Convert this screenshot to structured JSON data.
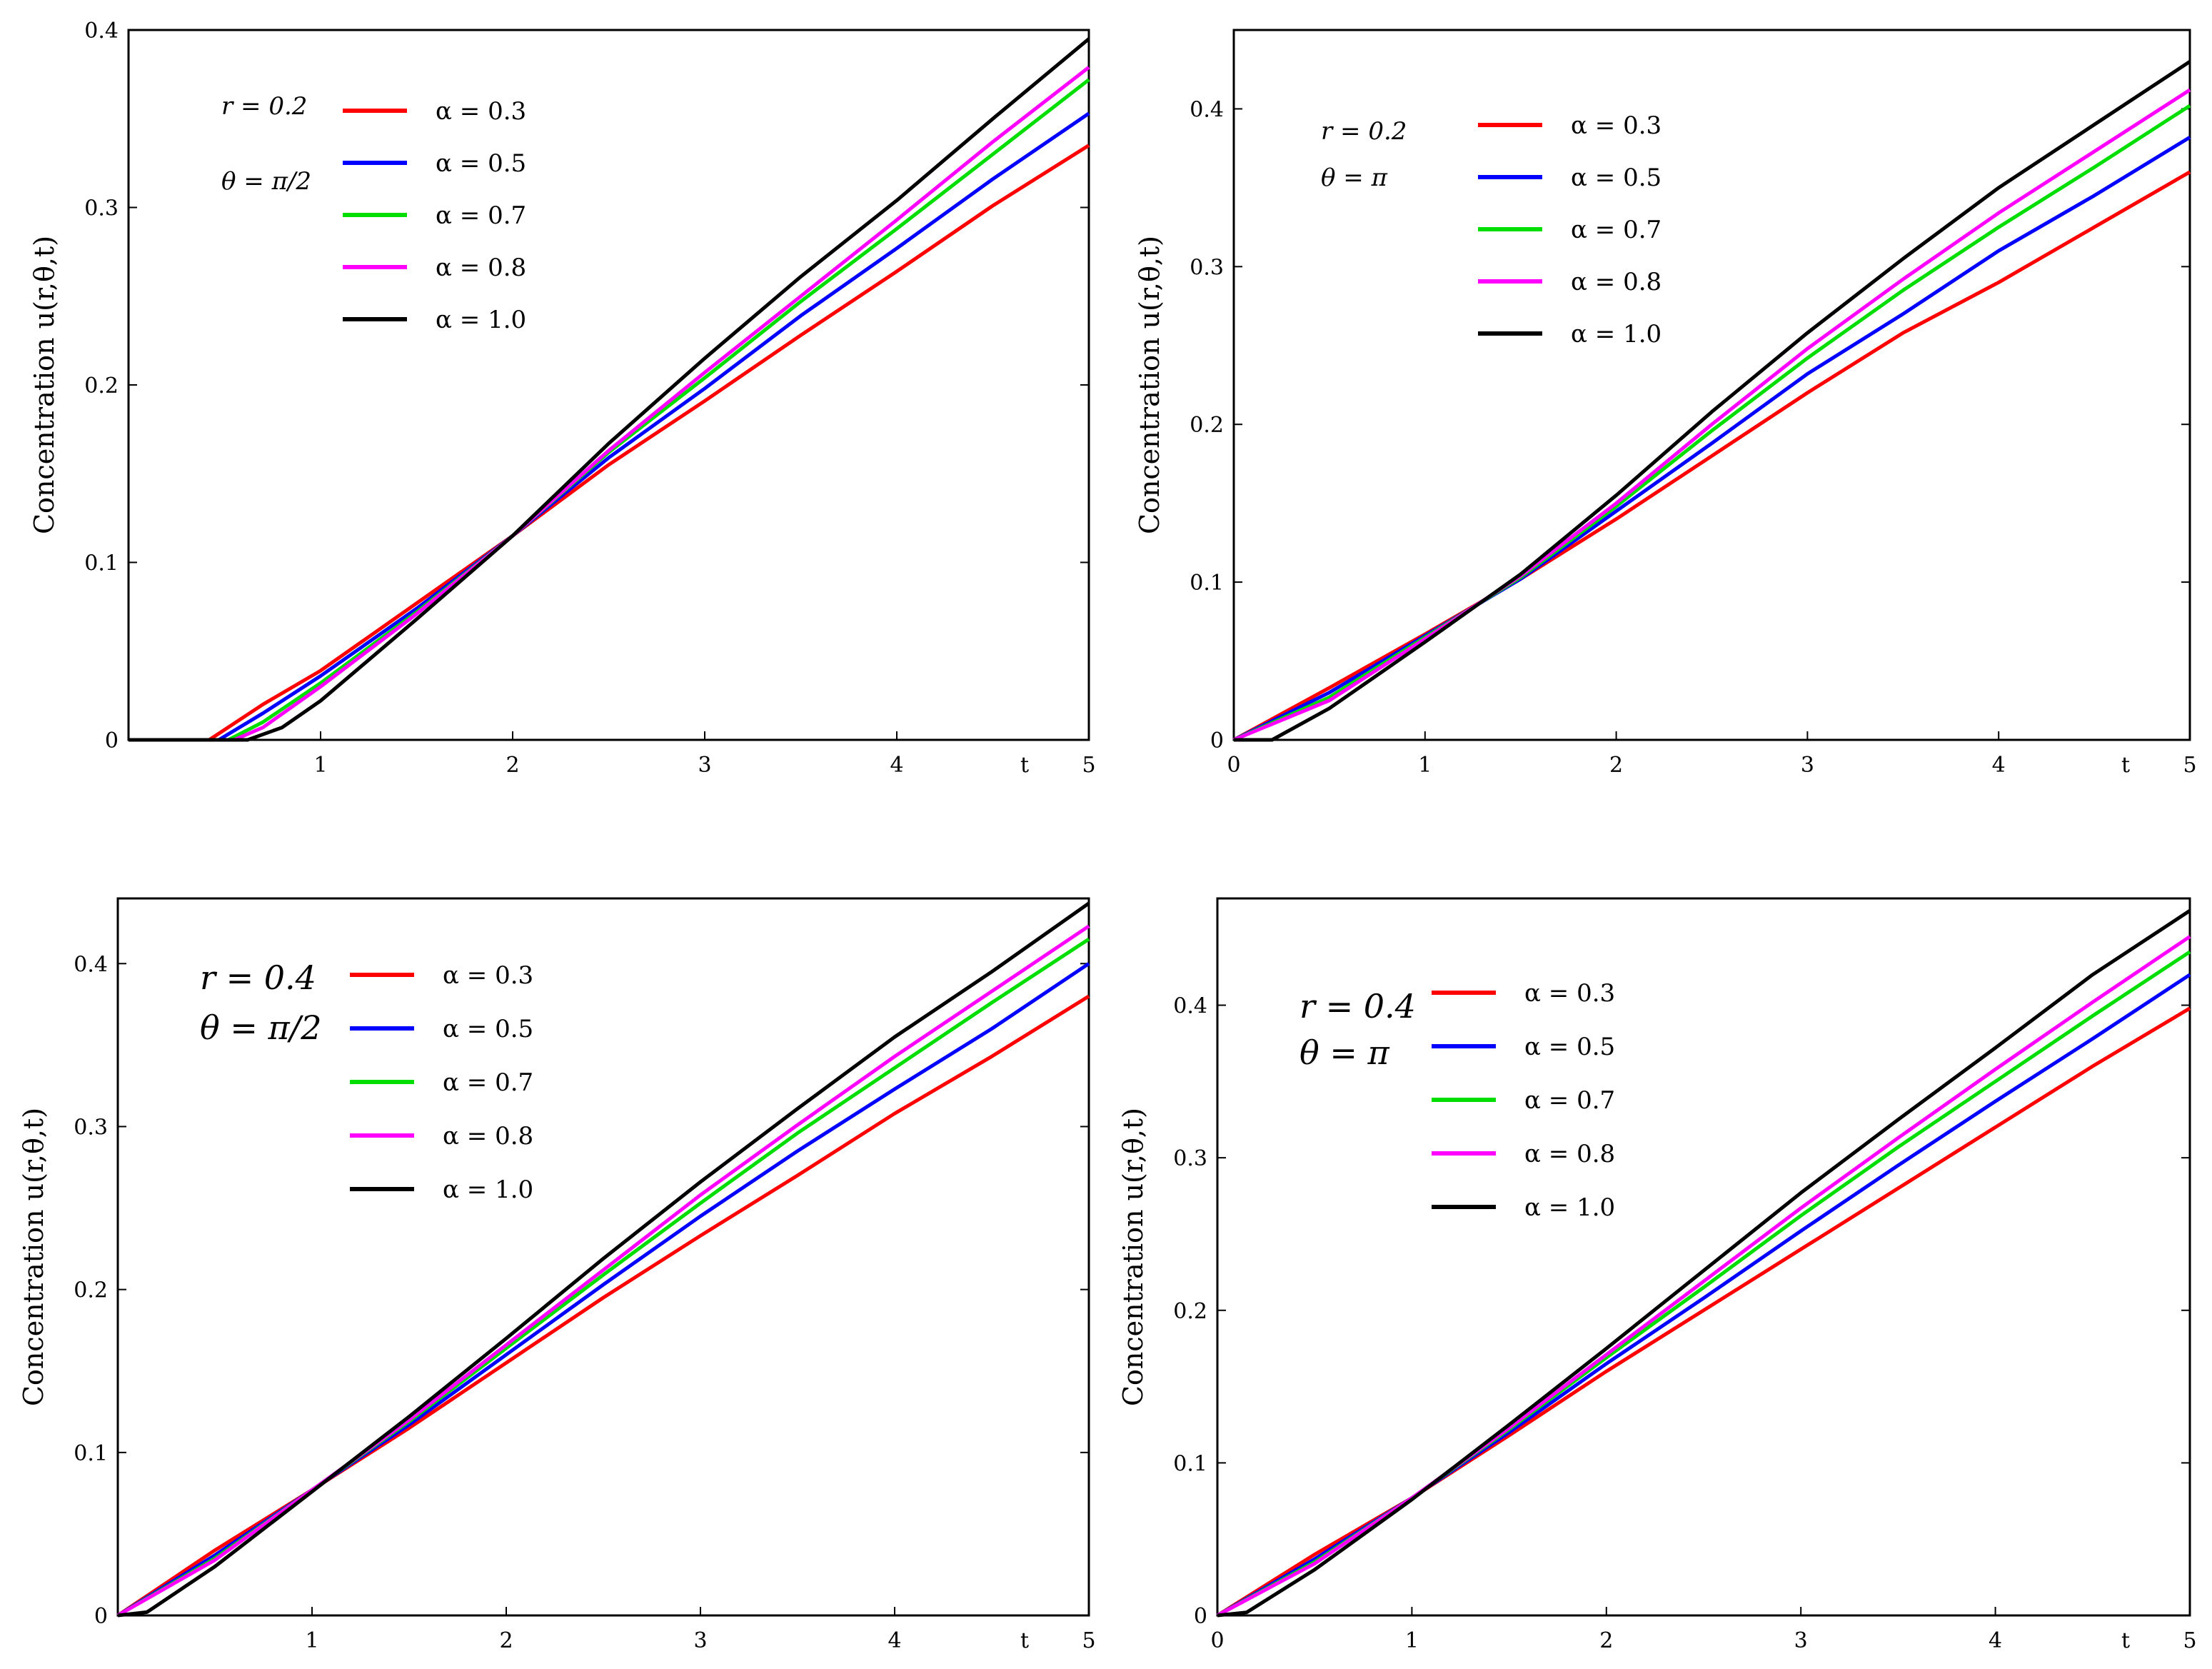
{
  "chart_data": [
    {
      "type": "line",
      "ylabel": "Concentration u(r,θ,t)",
      "xlabel": "t",
      "xlim": [
        0,
        5
      ],
      "ylim": [
        0,
        0.4
      ],
      "xticks": [
        "1",
        "2",
        "3",
        "4",
        "5"
      ],
      "yticks": [
        "0",
        "0.1",
        "0.2",
        "0.3",
        "0.4"
      ],
      "params": [
        "r = 0.2",
        "θ = π/2"
      ],
      "series": [
        {
          "name": "α = 0.3",
          "color": "#ff0000",
          "x": [
            0,
            0.42,
            0.7,
            1.0,
            1.5,
            2.0,
            2.5,
            3.0,
            3.5,
            4.0,
            4.5,
            5.0
          ],
          "y": [
            0,
            0,
            0.02,
            0.039,
            0.077,
            0.115,
            0.155,
            0.191,
            0.228,
            0.264,
            0.301,
            0.335
          ]
        },
        {
          "name": "α = 0.5",
          "color": "#0000ff",
          "x": [
            0,
            0.47,
            0.7,
            1.0,
            1.5,
            2.0,
            2.5,
            3.0,
            3.5,
            4.0,
            4.5,
            5.0
          ],
          "y": [
            0,
            0,
            0.015,
            0.036,
            0.074,
            0.115,
            0.159,
            0.198,
            0.239,
            0.277,
            0.316,
            0.353
          ]
        },
        {
          "name": "α = 0.7",
          "color": "#00dd00",
          "x": [
            0,
            0.52,
            0.7,
            1.0,
            1.5,
            2.0,
            2.5,
            3.0,
            3.5,
            4.0,
            4.5,
            5.0
          ],
          "y": [
            0,
            0,
            0.01,
            0.032,
            0.072,
            0.115,
            0.162,
            0.204,
            0.247,
            0.288,
            0.33,
            0.372
          ]
        },
        {
          "name": "α = 0.8",
          "color": "#ff00ff",
          "x": [
            0,
            0.55,
            0.7,
            1.0,
            1.5,
            2.0,
            2.5,
            3.0,
            3.5,
            4.0,
            4.5,
            5.0
          ],
          "y": [
            0,
            0,
            0.007,
            0.03,
            0.071,
            0.115,
            0.163,
            0.207,
            0.25,
            0.293,
            0.337,
            0.379
          ]
        },
        {
          "name": "α = 1.0",
          "color": "#000000",
          "x": [
            0,
            0.62,
            0.8,
            1.0,
            1.5,
            2.0,
            2.5,
            3.0,
            3.5,
            4.0,
            4.5,
            5.0
          ],
          "y": [
            0,
            0,
            0.007,
            0.022,
            0.068,
            0.115,
            0.167,
            0.215,
            0.261,
            0.304,
            0.35,
            0.395
          ]
        }
      ]
    },
    {
      "type": "line",
      "ylabel": "Concentration u(r,θ,t)",
      "xlabel": "t",
      "xlim": [
        0,
        5
      ],
      "ylim": [
        0,
        0.45
      ],
      "xticks": [
        "0",
        "1",
        "2",
        "3",
        "4",
        "5"
      ],
      "yticks": [
        "0",
        "0.1",
        "0.2",
        "0.3",
        "0.4"
      ],
      "params": [
        "r = 0.2",
        "θ = π"
      ],
      "series": [
        {
          "name": "α = 0.3",
          "color": "#ff0000",
          "x": [
            0,
            0.5,
            1.0,
            1.5,
            2.0,
            2.5,
            3.0,
            3.5,
            4.0,
            4.5,
            5.0
          ],
          "y": [
            0,
            0.033,
            0.067,
            0.102,
            0.14,
            0.18,
            0.22,
            0.258,
            0.29,
            0.325,
            0.36
          ]
        },
        {
          "name": "α = 0.5",
          "color": "#0000ff",
          "x": [
            0,
            0.5,
            1.0,
            1.5,
            2.0,
            2.5,
            3.0,
            3.5,
            4.0,
            4.5,
            5.0
          ],
          "y": [
            0,
            0.03,
            0.066,
            0.102,
            0.145,
            0.188,
            0.232,
            0.27,
            0.31,
            0.345,
            0.382
          ]
        },
        {
          "name": "α = 0.7",
          "color": "#00dd00",
          "x": [
            0,
            0.5,
            1.0,
            1.5,
            2.0,
            2.5,
            3.0,
            3.5,
            4.0,
            4.5,
            5.0
          ],
          "y": [
            0,
            0.027,
            0.065,
            0.103,
            0.148,
            0.196,
            0.242,
            0.285,
            0.325,
            0.363,
            0.402
          ]
        },
        {
          "name": "α = 0.8",
          "color": "#ff00ff",
          "x": [
            0,
            0.5,
            1.0,
            1.5,
            2.0,
            2.5,
            3.0,
            3.5,
            4.0,
            4.5,
            5.0
          ],
          "y": [
            0,
            0.025,
            0.064,
            0.104,
            0.15,
            0.2,
            0.248,
            0.292,
            0.334,
            0.373,
            0.412
          ]
        },
        {
          "name": "α = 1.0",
          "color": "#000000",
          "x": [
            0,
            0.2,
            0.5,
            1.0,
            1.5,
            2.0,
            2.5,
            3.0,
            3.5,
            4.0,
            4.5,
            5.0
          ],
          "y": [
            0,
            0,
            0.02,
            0.062,
            0.105,
            0.155,
            0.208,
            0.258,
            0.305,
            0.35,
            0.39,
            0.43
          ]
        }
      ]
    },
    {
      "type": "line",
      "ylabel": "Concentration u(r,θ,t)",
      "xlabel": "t",
      "xlim": [
        0,
        5
      ],
      "ylim": [
        0,
        0.44
      ],
      "xticks": [
        "1",
        "2",
        "3",
        "4",
        "5"
      ],
      "yticks": [
        "0",
        "0.1",
        "0.2",
        "0.3",
        "0.4"
      ],
      "params": [
        "r = 0.4",
        "θ = π/2"
      ],
      "series": [
        {
          "name": "α = 0.3",
          "color": "#ff0000",
          "x": [
            0,
            0.5,
            1.0,
            1.5,
            2.0,
            2.5,
            3.0,
            3.5,
            4.0,
            4.5,
            5.0
          ],
          "y": [
            0,
            0.04,
            0.077,
            0.115,
            0.155,
            0.195,
            0.233,
            0.27,
            0.308,
            0.343,
            0.38
          ]
        },
        {
          "name": "α = 0.5",
          "color": "#0000ff",
          "x": [
            0,
            0.5,
            1.0,
            1.5,
            2.0,
            2.5,
            3.0,
            3.5,
            4.0,
            4.5,
            5.0
          ],
          "y": [
            0,
            0.037,
            0.077,
            0.117,
            0.16,
            0.203,
            0.245,
            0.285,
            0.323,
            0.36,
            0.4
          ]
        },
        {
          "name": "α = 0.7",
          "color": "#00dd00",
          "x": [
            0,
            0.5,
            1.0,
            1.5,
            2.0,
            2.5,
            3.0,
            3.5,
            4.0,
            4.5,
            5.0
          ],
          "y": [
            0,
            0.035,
            0.077,
            0.119,
            0.164,
            0.209,
            0.253,
            0.296,
            0.336,
            0.376,
            0.415
          ]
        },
        {
          "name": "α = 0.8",
          "color": "#ff00ff",
          "x": [
            0,
            0.5,
            1.0,
            1.5,
            2.0,
            2.5,
            3.0,
            3.5,
            4.0,
            4.5,
            5.0
          ],
          "y": [
            0,
            0.034,
            0.077,
            0.12,
            0.166,
            0.212,
            0.258,
            0.301,
            0.343,
            0.383,
            0.423
          ]
        },
        {
          "name": "α = 1.0",
          "color": "#000000",
          "x": [
            0,
            0.15,
            0.5,
            1.0,
            1.5,
            2.0,
            2.5,
            3.0,
            3.5,
            4.0,
            4.5,
            5.0
          ],
          "y": [
            0,
            0.002,
            0.03,
            0.076,
            0.122,
            0.17,
            0.219,
            0.266,
            0.311,
            0.355,
            0.395,
            0.437
          ]
        }
      ]
    },
    {
      "type": "line",
      "ylabel": "Concentration u(r,θ,t)",
      "xlabel": "t",
      "xlim": [
        0,
        5
      ],
      "ylim": [
        0,
        0.47
      ],
      "xticks": [
        "0",
        "1",
        "2",
        "3",
        "4",
        "5"
      ],
      "yticks": [
        "0",
        "0.1",
        "0.2",
        "0.3",
        "0.4"
      ],
      "params": [
        "r = 0.4",
        "θ = π"
      ],
      "series": [
        {
          "name": "α = 0.3",
          "color": "#ff0000",
          "x": [
            0,
            0.5,
            1.0,
            1.5,
            2.0,
            2.5,
            3.0,
            3.5,
            4.0,
            4.5,
            5.0
          ],
          "y": [
            0,
            0.04,
            0.077,
            0.118,
            0.16,
            0.2,
            0.24,
            0.28,
            0.32,
            0.36,
            0.398
          ]
        },
        {
          "name": "α = 0.5",
          "color": "#0000ff",
          "x": [
            0,
            0.5,
            1.0,
            1.5,
            2.0,
            2.5,
            3.0,
            3.5,
            4.0,
            4.5,
            5.0
          ],
          "y": [
            0,
            0.037,
            0.077,
            0.12,
            0.165,
            0.208,
            0.252,
            0.295,
            0.337,
            0.378,
            0.42
          ]
        },
        {
          "name": "α = 0.7",
          "color": "#00dd00",
          "x": [
            0,
            0.5,
            1.0,
            1.5,
            2.0,
            2.5,
            3.0,
            3.5,
            4.0,
            4.5,
            5.0
          ],
          "y": [
            0,
            0.035,
            0.077,
            0.122,
            0.169,
            0.215,
            0.262,
            0.307,
            0.35,
            0.393,
            0.435
          ]
        },
        {
          "name": "α = 0.8",
          "color": "#ff00ff",
          "x": [
            0,
            0.5,
            1.0,
            1.5,
            2.0,
            2.5,
            3.0,
            3.5,
            4.0,
            4.5,
            5.0
          ],
          "y": [
            0,
            0.034,
            0.077,
            0.123,
            0.171,
            0.219,
            0.267,
            0.313,
            0.358,
            0.402,
            0.445
          ]
        },
        {
          "name": "α = 1.0",
          "color": "#000000",
          "x": [
            0,
            0.15,
            0.5,
            1.0,
            1.5,
            2.0,
            2.5,
            3.0,
            3.5,
            4.0,
            4.5,
            5.0
          ],
          "y": [
            0,
            0.002,
            0.03,
            0.076,
            0.125,
            0.175,
            0.226,
            0.277,
            0.325,
            0.372,
            0.42,
            0.462
          ]
        }
      ]
    }
  ]
}
